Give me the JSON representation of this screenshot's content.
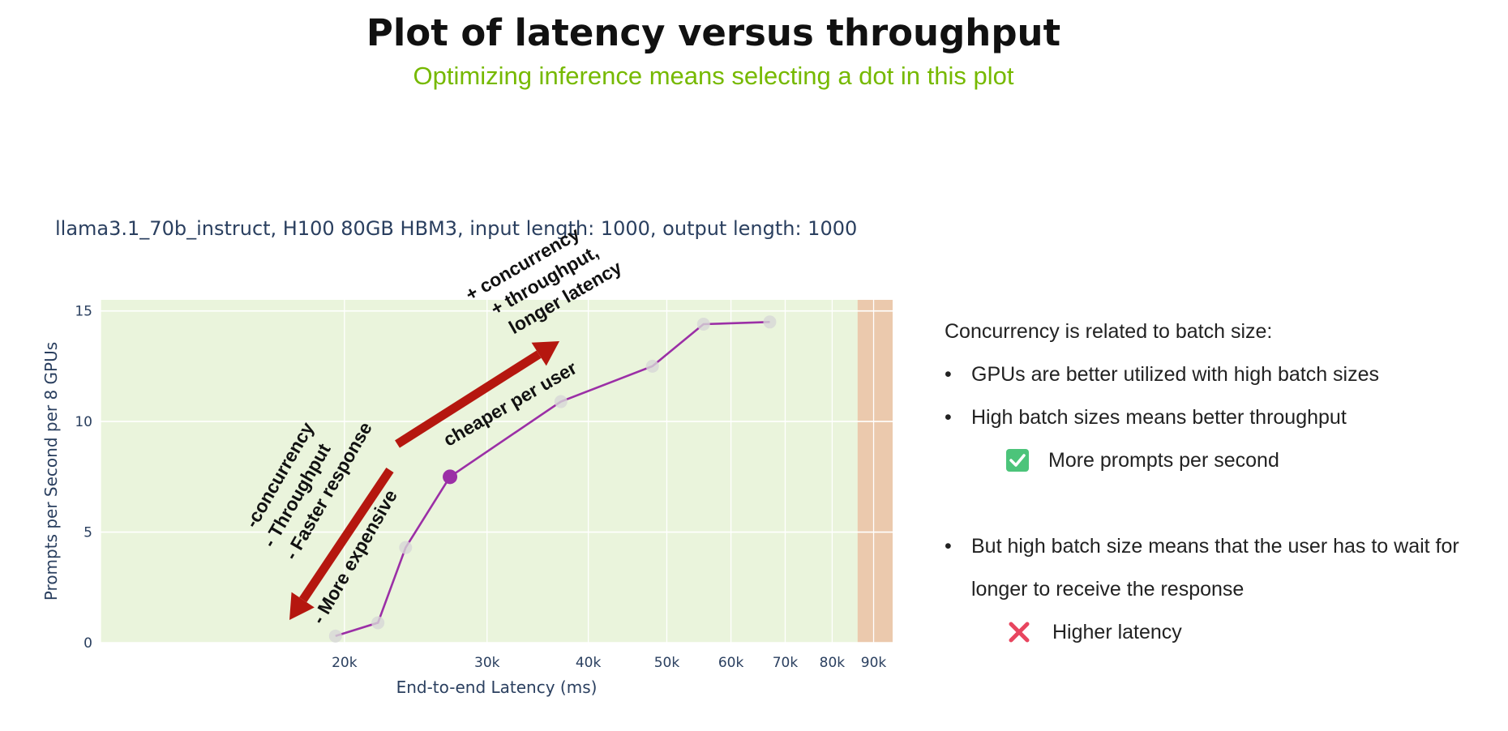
{
  "title": "Plot of latency versus throughput",
  "subtitle": "Optimizing inference means selecting a dot in this plot",
  "chart_data": {
    "type": "line",
    "title": "llama3.1_70b_instruct, H100 80GB HBM3, input length: 1000, output length: 1000",
    "xlabel": "End-to-end Latency (ms)",
    "ylabel": "Prompts per Second per 8 GPUs",
    "xscale": "log",
    "xlim": [
      10000,
      95000
    ],
    "ylim": [
      0,
      15.5
    ],
    "x_ticks": [
      20000,
      30000,
      40000,
      50000,
      60000,
      70000,
      80000,
      90000
    ],
    "x_tick_labels": [
      "20k",
      "30k",
      "40k",
      "50k",
      "60k",
      "70k",
      "80k",
      "90k"
    ],
    "y_ticks": [
      0,
      5,
      10,
      15
    ],
    "y_tick_labels": [
      "0",
      "5",
      "10",
      "15"
    ],
    "grid": true,
    "colors": {
      "line": "#9b2fa6",
      "plot_bg": "#eaf4dc",
      "shaded_region": "#ebc9ad",
      "arrow": "#b5170f"
    },
    "shaded_region_x": [
      86000,
      95000
    ],
    "series": [
      {
        "x": [
          19500,
          22000,
          23800,
          27000,
          37000,
          48000,
          55500,
          67000
        ],
        "y": [
          0.3,
          0.9,
          4.3,
          7.5,
          10.9,
          12.5,
          14.4,
          14.5
        ],
        "highlighted_index": 3
      }
    ],
    "annotations": {
      "up_arrow_text": [
        "+ concurrency",
        "+ throughput,",
        "longer latency",
        "cheaper per user"
      ],
      "down_arrow_text": [
        "-concurrency",
        "-  Throughput",
        "-  Faster response",
        "-  More expensive"
      ]
    }
  },
  "notes": {
    "intro": "Concurrency is related to batch size:",
    "bullet_1": "GPUs are better utilized with high batch sizes",
    "bullet_2": "High batch sizes means better throughput",
    "pro": "More prompts per second",
    "bullet_3_line1": "But high batch size means that the user has to wait for",
    "bullet_3_line2": "longer to receive the response",
    "con": "Higher latency",
    "bullet_symbol": "•"
  }
}
